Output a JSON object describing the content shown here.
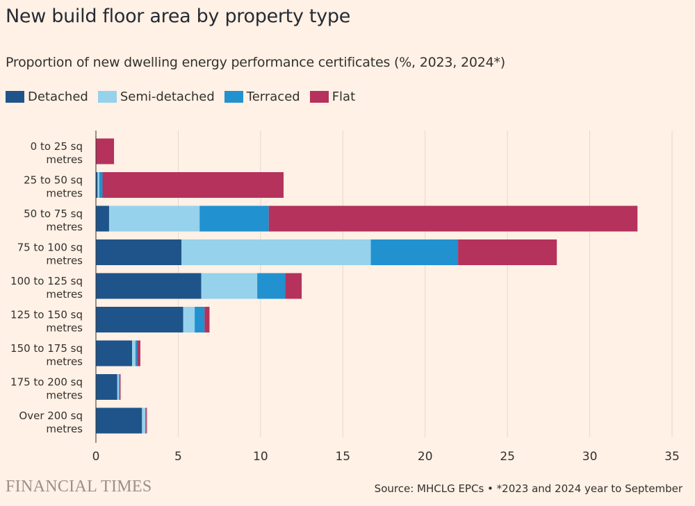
{
  "title": "New build floor area by property type",
  "subtitle": "Proportion of new dwelling energy performance certificates (%, 2023, 2024*)",
  "footer": {
    "brand": "FINANCIAL TIMES",
    "source": "Source: MHCLG EPCs • *2023 and 2024 year to September"
  },
  "colors": {
    "background": "#fff1e5",
    "grid": "#e3d8cf",
    "axis": "#33302e"
  },
  "chart_data": {
    "type": "bar",
    "orientation": "horizontal",
    "stacked": true,
    "title": "New build floor area by property type",
    "subtitle": "Proportion of new dwelling energy performance certificates (%, 2023, 2024*)",
    "categories": [
      [
        "0 to 25 sq",
        "metres"
      ],
      [
        "25 to 50 sq",
        "metres"
      ],
      [
        "50 to 75 sq",
        "metres"
      ],
      [
        "75 to 100 sq",
        "metres"
      ],
      [
        "100 to 125 sq",
        "metres"
      ],
      [
        "125 to 150 sq",
        "metres"
      ],
      [
        "150 to 175 sq",
        "metres"
      ],
      [
        "175 to 200 sq",
        "metres"
      ],
      [
        "Over 200 sq",
        "metres"
      ]
    ],
    "series": [
      {
        "name": "Detached",
        "color": "#1f548a",
        "values": [
          0.0,
          0.1,
          0.8,
          5.2,
          6.4,
          5.3,
          2.2,
          1.3,
          2.8
        ]
      },
      {
        "name": "Semi-detached",
        "color": "#96d2eb",
        "values": [
          0.0,
          0.1,
          5.5,
          11.5,
          3.4,
          0.7,
          0.2,
          0.1,
          0.2
        ]
      },
      {
        "name": "Terraced",
        "color": "#2191d0",
        "values": [
          0.0,
          0.2,
          4.2,
          5.3,
          1.7,
          0.6,
          0.1,
          0.05,
          0.05
        ]
      },
      {
        "name": "Flat",
        "color": "#b5325d",
        "values": [
          1.1,
          11.0,
          22.4,
          6.0,
          1.0,
          0.3,
          0.2,
          0.05,
          0.05
        ]
      }
    ],
    "xlim": [
      0,
      35
    ],
    "xticks": [
      0,
      5,
      10,
      15,
      20,
      25,
      30,
      35
    ],
    "grid": true,
    "legend_position": "top-left"
  }
}
